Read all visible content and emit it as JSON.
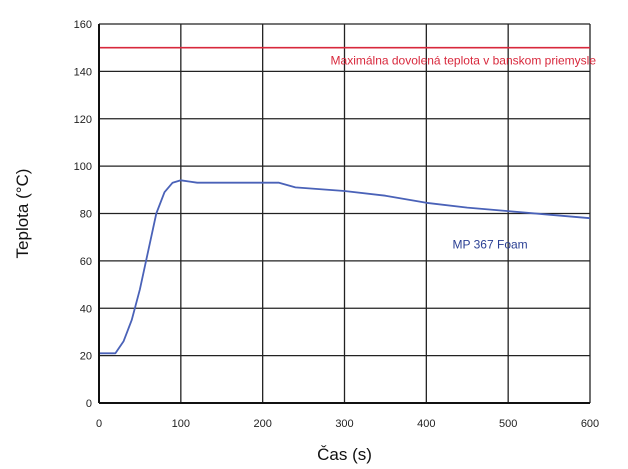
{
  "chart_data": {
    "type": "line",
    "xlabel": "Čas (s)",
    "ylabel": "Teplota (°C)",
    "xlim": [
      0,
      600
    ],
    "ylim": [
      0,
      160
    ],
    "xticks": [
      0,
      100,
      200,
      300,
      400,
      500,
      600
    ],
    "yticks": [
      0,
      20,
      40,
      60,
      80,
      100,
      120,
      140,
      160
    ],
    "grid": true,
    "series": [
      {
        "name": "MP 367 Foam",
        "color": "#4a62b8",
        "x": [
          0,
          20,
          30,
          40,
          50,
          60,
          70,
          80,
          90,
          100,
          110,
          120,
          150,
          200,
          220,
          240,
          300,
          350,
          400,
          450,
          500,
          550,
          600
        ],
        "y": [
          21,
          21,
          26,
          35,
          48,
          64,
          80,
          89,
          93,
          94,
          93.5,
          93,
          93,
          93,
          93,
          91,
          89.5,
          87.5,
          84.5,
          82.5,
          81,
          79.5,
          78
        ]
      }
    ],
    "annotations": [
      {
        "type": "hline",
        "label": "Maximálna dovolená teplota v banskom priemysle",
        "y": 150,
        "x_range": [
          0,
          600
        ],
        "color": "#d8283c"
      }
    ]
  }
}
